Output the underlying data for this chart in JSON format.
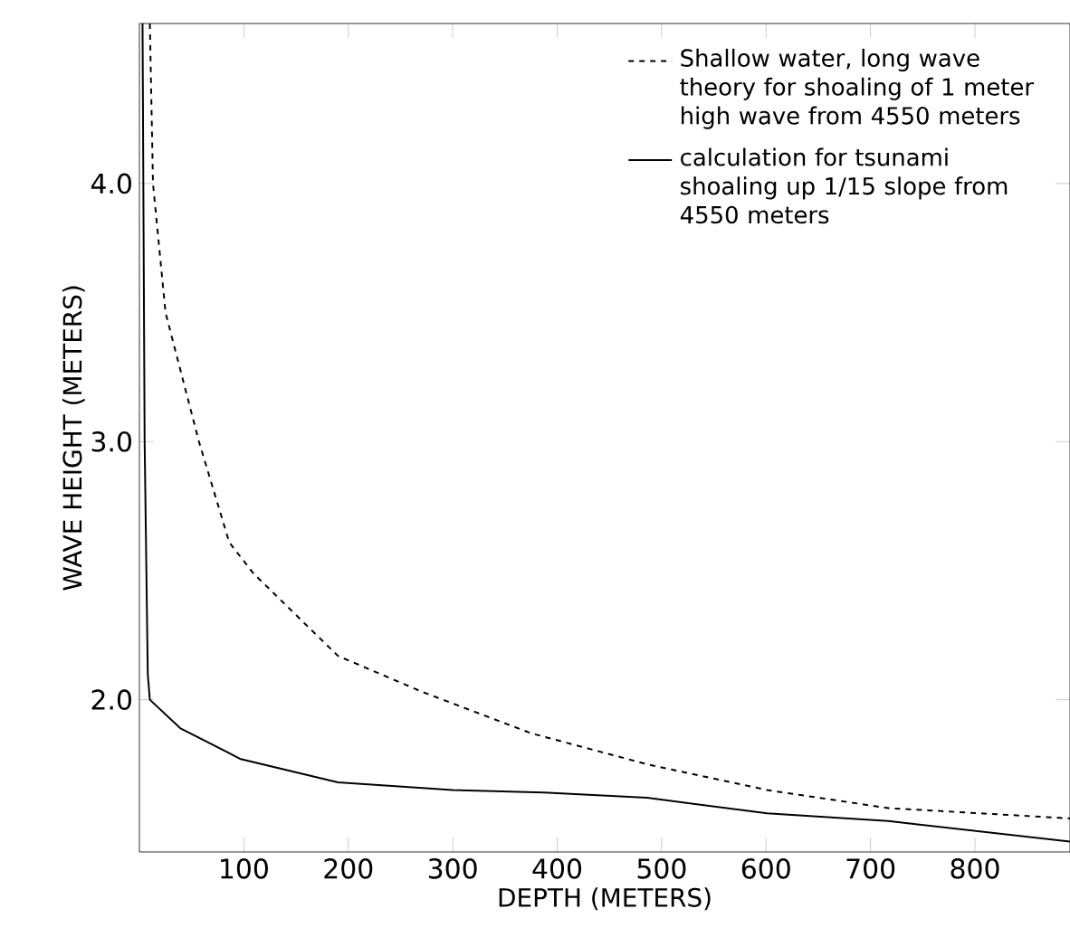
{
  "chart_data": {
    "type": "line",
    "xlabel": "DEPTH (METERS)",
    "ylabel": "WAVE HEIGHT (METERS)",
    "xlim": [
      0,
      891
    ],
    "ylim": [
      1.41,
      4.62
    ],
    "xticks": [
      100,
      200,
      300,
      400,
      500,
      600,
      700,
      800
    ],
    "yticks": [
      {
        "value": 2,
        "label": "2.0"
      },
      {
        "value": 3,
        "label": "3.0"
      },
      {
        "value": 4,
        "label": "4.0"
      }
    ],
    "grid": false,
    "legend": "top right",
    "marker": "none",
    "series": [
      {
        "name": "Shallow water, long wave theory for shoaling of 1 meter high wave from 4550 meters",
        "color": "#000000",
        "line_style": "dashed",
        "x": [
          10,
          13,
          25,
          57,
          86,
          109,
          190,
          271,
          375,
          486,
          601,
          717,
          891
        ],
        "values": [
          4.62,
          4.0,
          3.5,
          3.0,
          2.61,
          2.49,
          2.17,
          2.03,
          1.87,
          1.75,
          1.65,
          1.58,
          1.54
        ]
      },
      {
        "name": "calculation for tsunami shoaling up 1/15 slope from 4550 meters",
        "color": "#000000",
        "line_style": "solid",
        "x": [
          3,
          5,
          8,
          10,
          39,
          97,
          190,
          300,
          387,
          486,
          601,
          717,
          891
        ],
        "values": [
          4.62,
          3.0,
          2.1,
          2.0,
          1.89,
          1.77,
          1.68,
          1.65,
          1.64,
          1.62,
          1.56,
          1.53,
          1.45
        ]
      }
    ]
  }
}
